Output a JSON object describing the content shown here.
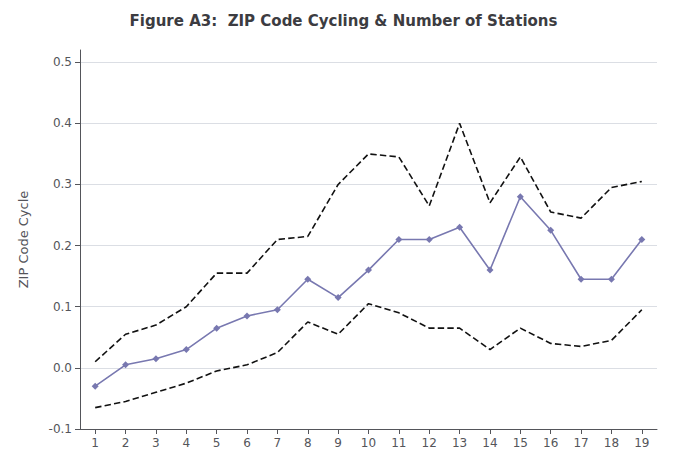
{
  "chart_data": {
    "type": "line",
    "title": "Figure A3:  ZIP Code Cycling & Number of Stations",
    "ylabel": "ZIP Code Cycle",
    "x": [
      1,
      2,
      3,
      4,
      5,
      6,
      7,
      8,
      9,
      10,
      11,
      12,
      13,
      14,
      15,
      16,
      17,
      18,
      19
    ],
    "series": [
      {
        "color": "#111111",
        "line_style": "dashed",
        "marker": "none",
        "values": [
          0.01,
          0.055,
          0.07,
          0.1,
          0.155,
          0.155,
          0.21,
          0.215,
          0.3,
          0.35,
          0.345,
          0.265,
          0.4,
          0.27,
          0.345,
          0.255,
          0.245,
          0.295,
          0.305
        ]
      },
      {
        "color": "#111111",
        "line_style": "dashed",
        "marker": "none",
        "values": [
          -0.065,
          -0.055,
          -0.04,
          -0.025,
          -0.005,
          0.005,
          0.025,
          0.075,
          0.055,
          0.105,
          0.09,
          0.065,
          0.065,
          0.03,
          0.065,
          0.04,
          0.035,
          0.045,
          0.095
        ]
      },
      {
        "color": "#7878b0",
        "line_style": "solid",
        "marker": "diamond",
        "values": [
          -0.03,
          0.005,
          0.015,
          0.03,
          0.065,
          0.085,
          0.095,
          0.145,
          0.115,
          0.16,
          0.21,
          0.21,
          0.23,
          0.16,
          0.28,
          0.225,
          0.145,
          0.145,
          0.21
        ]
      }
    ],
    "xlim": [
      0.5,
      19.5
    ],
    "xticks": [
      1,
      2,
      3,
      4,
      5,
      6,
      7,
      8,
      9,
      10,
      11,
      12,
      13,
      14,
      15,
      16,
      17,
      18,
      19
    ],
    "ylim": [
      -0.1,
      0.52
    ],
    "yticks": [
      -0.1,
      {
        "value": 0.0,
        "label": "0.0"
      },
      0.1,
      0.2,
      0.3,
      0.4,
      0.5
    ],
    "grid": true
  }
}
